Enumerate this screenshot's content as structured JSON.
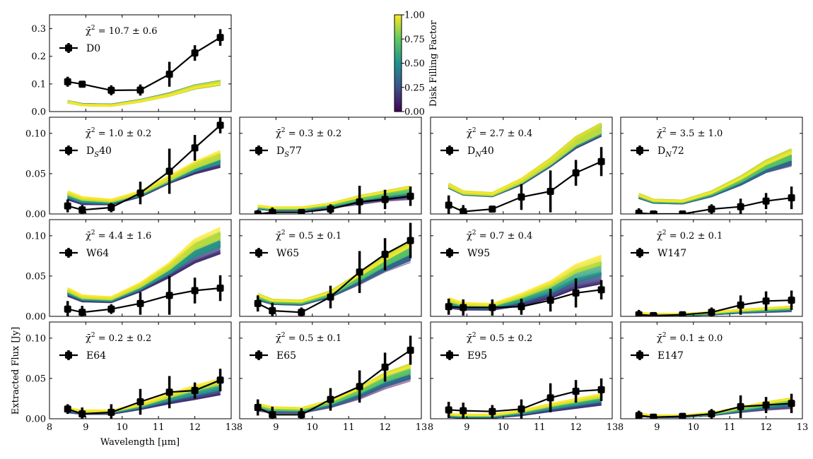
{
  "figure": {
    "xlabel": "Wavelength [μm]",
    "ylabel": "Extracted Flux [Jy]",
    "colorbar": {
      "label": "Disk Filling Factor",
      "ticks": [
        "0.00",
        "0.25",
        "0.50",
        "0.75",
        "1.00"
      ],
      "colormap": [
        "#440154",
        "#3b528b",
        "#21918c",
        "#5ec962",
        "#fde725"
      ]
    },
    "x_ticks": [
      "8",
      "9",
      "10",
      "11",
      "12",
      "13"
    ],
    "marker_color": "#000000"
  },
  "chart_data": [
    {
      "type": "line",
      "name": "D0",
      "sub": "",
      "chi2": "10.7 ± 0.6",
      "ylim": [
        0,
        0.35
      ],
      "yticks": [
        "0.0",
        "0.1",
        "0.2",
        "0.3"
      ],
      "xlim": [
        8,
        13
      ],
      "x": [
        8.5,
        8.9,
        9.7,
        10.5,
        11.3,
        12.0,
        12.7
      ],
      "obs": [
        0.108,
        0.099,
        0.077,
        0.078,
        0.135,
        0.212,
        0.268
      ],
      "err": [
        0.018,
        0.01,
        0.018,
        0.02,
        0.045,
        0.028,
        0.03
      ],
      "model_dense": [
        0.035,
        0.024,
        0.022,
        0.038,
        0.06,
        0.088,
        0.103
      ],
      "model_empty": [
        0.036,
        0.026,
        0.024,
        0.04,
        0.063,
        0.09,
        0.105
      ]
    },
    {
      "type": "line",
      "name": "D",
      "sub": "S",
      "suffix": "40",
      "chi2": "1.0 ± 0.2",
      "ylim": [
        0,
        0.12
      ],
      "yticks": [
        "0.00",
        "0.05",
        "0.10"
      ],
      "xlim": [
        8,
        13
      ],
      "x": [
        8.5,
        8.9,
        9.7,
        10.5,
        11.3,
        12.0,
        12.7
      ],
      "obs": [
        0.01,
        0.005,
        0.008,
        0.026,
        0.053,
        0.082,
        0.11
      ],
      "err": [
        0.008,
        0.006,
        0.006,
        0.014,
        0.028,
        0.016,
        0.01
      ],
      "model_dense": [
        0.027,
        0.02,
        0.017,
        0.027,
        0.045,
        0.062,
        0.075
      ],
      "model_empty": [
        0.018,
        0.012,
        0.012,
        0.022,
        0.04,
        0.052,
        0.06
      ]
    },
    {
      "type": "line",
      "name": "D",
      "sub": "S",
      "suffix": "77",
      "chi2": "0.3 ± 0.2",
      "ylim": [
        0,
        0.12
      ],
      "yticks": [
        "0.00",
        "0.05",
        "0.10"
      ],
      "xlim": [
        8,
        13
      ],
      "x": [
        8.5,
        8.9,
        9.7,
        10.5,
        11.3,
        12.0,
        12.7
      ],
      "obs": [
        0.0,
        0.002,
        0.002,
        0.006,
        0.015,
        0.018,
        0.022
      ],
      "err": [
        0.005,
        0.006,
        0.004,
        0.006,
        0.02,
        0.012,
        0.012
      ],
      "model_dense": [
        0.01,
        0.008,
        0.008,
        0.013,
        0.022,
        0.028,
        0.034
      ],
      "model_empty": [
        0.006,
        0.004,
        0.004,
        0.007,
        0.012,
        0.016,
        0.018
      ]
    },
    {
      "type": "line",
      "name": "D",
      "sub": "N",
      "suffix": "40",
      "chi2": "2.7 ± 0.4",
      "ylim": [
        0,
        0.12
      ],
      "yticks": [
        "0.00",
        "0.05",
        "0.10"
      ],
      "xlim": [
        8,
        13
      ],
      "x": [
        8.5,
        8.9,
        9.7,
        10.5,
        11.3,
        12.0,
        12.7
      ],
      "obs": [
        0.011,
        0.003,
        0.006,
        0.021,
        0.028,
        0.051,
        0.065
      ],
      "err": [
        0.012,
        0.008,
        0.004,
        0.016,
        0.026,
        0.016,
        0.018
      ],
      "model_dense": [
        0.036,
        0.027,
        0.025,
        0.042,
        0.066,
        0.092,
        0.108
      ],
      "model_empty": [
        0.034,
        0.025,
        0.023,
        0.038,
        0.062,
        0.086,
        0.102
      ]
    },
    {
      "type": "line",
      "name": "D",
      "sub": "N",
      "suffix": "72",
      "chi2": "3.5 ± 1.0",
      "ylim": [
        0,
        0.12
      ],
      "yticks": [
        "0.00",
        "0.05",
        "0.10"
      ],
      "xlim": [
        8,
        13
      ],
      "x": [
        8.5,
        8.9,
        9.7,
        10.5,
        11.3,
        12.0,
        12.7
      ],
      "obs": [
        0.001,
        0.0,
        0.0,
        0.006,
        0.009,
        0.016,
        0.02
      ],
      "err": [
        0.006,
        0.004,
        0.004,
        0.006,
        0.01,
        0.01,
        0.014
      ],
      "model_dense": [
        0.024,
        0.017,
        0.016,
        0.027,
        0.045,
        0.064,
        0.078
      ],
      "model_empty": [
        0.02,
        0.014,
        0.013,
        0.022,
        0.036,
        0.052,
        0.06
      ]
    },
    {
      "type": "line",
      "name": "W64",
      "sub": "",
      "chi2": "4.4 ± 1.6",
      "ylim": [
        0,
        0.12
      ],
      "yticks": [
        "0.00",
        "0.05",
        "0.10"
      ],
      "xlim": [
        8,
        13
      ],
      "x": [
        8.5,
        8.9,
        9.7,
        10.5,
        11.3,
        12.0,
        12.7
      ],
      "obs": [
        0.009,
        0.005,
        0.009,
        0.016,
        0.026,
        0.032,
        0.035
      ],
      "err": [
        0.01,
        0.008,
        0.006,
        0.014,
        0.024,
        0.016,
        0.016
      ],
      "model_dense": [
        0.034,
        0.025,
        0.023,
        0.04,
        0.064,
        0.092,
        0.106
      ],
      "model_empty": [
        0.026,
        0.019,
        0.018,
        0.032,
        0.05,
        0.068,
        0.08
      ]
    },
    {
      "type": "line",
      "name": "W65",
      "sub": "",
      "chi2": "0.5 ± 0.1",
      "ylim": [
        0,
        0.12
      ],
      "yticks": [
        "0.00",
        "0.05",
        "0.10"
      ],
      "xlim": [
        8,
        13
      ],
      "x": [
        8.5,
        8.9,
        9.7,
        10.5,
        11.3,
        12.0,
        12.7
      ],
      "obs": [
        0.016,
        0.007,
        0.005,
        0.024,
        0.055,
        0.077,
        0.094
      ],
      "err": [
        0.01,
        0.01,
        0.006,
        0.014,
        0.026,
        0.02,
        0.022
      ],
      "model_dense": [
        0.027,
        0.02,
        0.019,
        0.03,
        0.052,
        0.072,
        0.09
      ],
      "model_empty": [
        0.02,
        0.015,
        0.014,
        0.024,
        0.04,
        0.056,
        0.068
      ]
    },
    {
      "type": "line",
      "name": "W95",
      "sub": "",
      "chi2": "0.7 ± 0.4",
      "ylim": [
        0,
        0.12
      ],
      "yticks": [
        "0.00",
        "0.05",
        "0.10"
      ],
      "xlim": [
        8,
        13
      ],
      "x": [
        8.5,
        8.9,
        9.7,
        10.5,
        11.3,
        12.0,
        12.7
      ],
      "obs": [
        0.012,
        0.011,
        0.011,
        0.012,
        0.02,
        0.029,
        0.033
      ],
      "err": [
        0.01,
        0.01,
        0.01,
        0.01,
        0.014,
        0.018,
        0.012
      ],
      "model_dense": [
        0.022,
        0.016,
        0.015,
        0.027,
        0.042,
        0.062,
        0.073
      ],
      "model_empty": [
        0.01,
        0.008,
        0.008,
        0.013,
        0.022,
        0.034,
        0.04
      ]
    },
    {
      "type": "line",
      "name": "W147",
      "sub": "",
      "chi2": "0.2 ± 0.1",
      "ylim": [
        0,
        0.12
      ],
      "yticks": [
        "0.00",
        "0.05",
        "0.10"
      ],
      "xlim": [
        8,
        13
      ],
      "x": [
        8.5,
        8.9,
        9.7,
        10.5,
        11.3,
        12.0,
        12.7
      ],
      "obs": [
        0.002,
        0.001,
        0.002,
        0.005,
        0.014,
        0.019,
        0.02
      ],
      "err": [
        0.006,
        0.004,
        0.004,
        0.006,
        0.012,
        0.012,
        0.012
      ],
      "model_dense": [
        0.004,
        0.003,
        0.003,
        0.005,
        0.008,
        0.01,
        0.012
      ],
      "model_empty": [
        0.002,
        0.001,
        0.001,
        0.002,
        0.004,
        0.005,
        0.006
      ]
    },
    {
      "type": "line",
      "name": "E64",
      "sub": "",
      "chi2": "0.2 ± 0.2",
      "ylim": [
        0,
        0.12
      ],
      "yticks": [
        "0.00",
        "0.05",
        "0.10"
      ],
      "xlim": [
        8,
        13
      ],
      "x": [
        8.5,
        8.9,
        9.7,
        10.5,
        11.3,
        12.0,
        12.7
      ],
      "obs": [
        0.012,
        0.006,
        0.008,
        0.021,
        0.033,
        0.035,
        0.048
      ],
      "err": [
        0.006,
        0.008,
        0.01,
        0.016,
        0.02,
        0.01,
        0.014
      ],
      "model_dense": [
        0.013,
        0.01,
        0.01,
        0.018,
        0.03,
        0.04,
        0.048
      ],
      "model_empty": [
        0.008,
        0.006,
        0.006,
        0.012,
        0.019,
        0.024,
        0.03
      ]
    },
    {
      "type": "line",
      "name": "E65",
      "sub": "",
      "chi2": "0.5 ± 0.1",
      "ylim": [
        0,
        0.12
      ],
      "yticks": [
        "0.00",
        "0.05",
        "0.10"
      ],
      "xlim": [
        8,
        13
      ],
      "x": [
        8.5,
        8.9,
        9.7,
        10.5,
        11.3,
        12.0,
        12.7
      ],
      "obs": [
        0.014,
        0.005,
        0.005,
        0.024,
        0.04,
        0.064,
        0.085
      ],
      "err": [
        0.01,
        0.01,
        0.008,
        0.014,
        0.02,
        0.018,
        0.018
      ],
      "model_dense": [
        0.018,
        0.014,
        0.013,
        0.022,
        0.038,
        0.055,
        0.066
      ],
      "model_empty": [
        0.01,
        0.007,
        0.007,
        0.014,
        0.025,
        0.038,
        0.048
      ]
    },
    {
      "type": "line",
      "name": "E95",
      "sub": "",
      "chi2": "0.5 ± 0.2",
      "ylim": [
        0,
        0.12
      ],
      "yticks": [
        "0.00",
        "0.05",
        "0.10"
      ],
      "xlim": [
        8,
        13
      ],
      "x": [
        8.5,
        8.9,
        9.7,
        10.5,
        11.3,
        12.0,
        12.7
      ],
      "obs": [
        0.011,
        0.01,
        0.009,
        0.012,
        0.026,
        0.034,
        0.036
      ],
      "err": [
        0.01,
        0.01,
        0.008,
        0.012,
        0.018,
        0.014,
        0.014
      ],
      "model_dense": [
        0.006,
        0.005,
        0.005,
        0.01,
        0.018,
        0.024,
        0.03
      ],
      "model_empty": [
        0.002,
        0.001,
        0.001,
        0.004,
        0.009,
        0.013,
        0.017
      ]
    },
    {
      "type": "line",
      "name": "E147",
      "sub": "",
      "chi2": "0.1 ± 0.0",
      "ylim": [
        0,
        0.12
      ],
      "yticks": [
        "0.00",
        "0.05",
        "0.10"
      ],
      "xlim": [
        8,
        13
      ],
      "x": [
        8.5,
        8.9,
        9.7,
        10.5,
        11.3,
        12.0,
        12.7
      ],
      "obs": [
        0.004,
        0.002,
        0.003,
        0.006,
        0.015,
        0.017,
        0.019
      ],
      "err": [
        0.006,
        0.004,
        0.004,
        0.006,
        0.014,
        0.01,
        0.012
      ],
      "model_dense": [
        0.006,
        0.004,
        0.004,
        0.007,
        0.014,
        0.02,
        0.025
      ],
      "model_empty": [
        0.003,
        0.002,
        0.002,
        0.004,
        0.008,
        0.011,
        0.013
      ]
    }
  ]
}
